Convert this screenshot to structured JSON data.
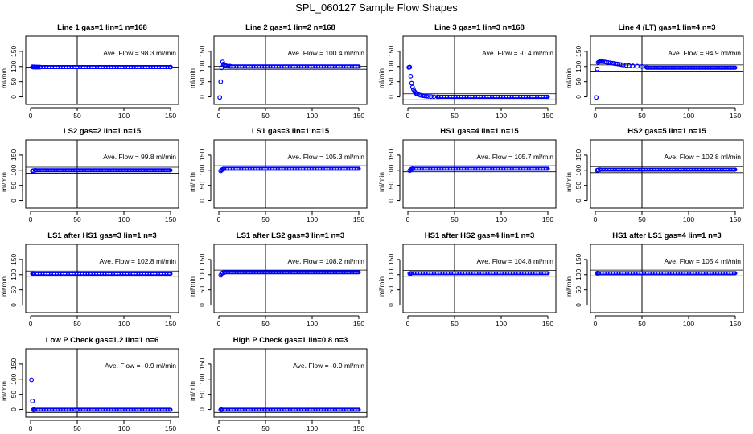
{
  "figure": {
    "title": "SPL_060127  Sample Flow Shapes",
    "ylabel": "ml/min",
    "xticks": [
      0,
      50,
      100,
      150
    ],
    "yticks": [
      0,
      50,
      100,
      150
    ],
    "xlim": [
      0,
      150
    ],
    "ylim": [
      -25,
      200
    ],
    "marker_color": "#0000ff",
    "axis_color": "#000000"
  },
  "chart_data": [
    {
      "type": "scatter",
      "title": "Line 1 gas=1 lin=1 n=168",
      "annotation": "Ave. Flow = 98.3  ml/min",
      "xlim": [
        0,
        150
      ],
      "ylim": [
        -25,
        200
      ],
      "xticks": [
        0,
        50,
        100,
        150
      ],
      "yticks": [
        0,
        50,
        100,
        150
      ],
      "ylabel": "ml/min",
      "vline": 50,
      "hlines": [
        98.3
      ],
      "points": [
        [
          2,
          99
        ],
        [
          3,
          98
        ],
        [
          4,
          99
        ],
        [
          5,
          98
        ],
        [
          6,
          98
        ],
        [
          7,
          98
        ],
        [
          8,
          98
        ],
        [
          10,
          98
        ],
        [
          150,
          98
        ]
      ],
      "line_from": 10,
      "line_y": 98
    },
    {
      "type": "scatter",
      "title": "Line 2 gas=1 lin=2 n=168",
      "annotation": "Ave. Flow = 100.4  ml/min",
      "xlim": [
        0,
        150
      ],
      "ylim": [
        -25,
        200
      ],
      "xticks": [
        0,
        50,
        100,
        150
      ],
      "yticks": [
        0,
        50,
        100,
        150
      ],
      "ylabel": "ml/min",
      "vline": 50,
      "hlines": [
        100.4,
        91
      ],
      "points": [
        [
          1,
          -2
        ],
        [
          2,
          50
        ],
        [
          3,
          96
        ],
        [
          4,
          115
        ],
        [
          5,
          108
        ],
        [
          6,
          104
        ],
        [
          7,
          103
        ],
        [
          8,
          102
        ],
        [
          10,
          101
        ],
        [
          12,
          101
        ]
      ],
      "line_from": 12,
      "line_y": 100
    },
    {
      "type": "scatter",
      "title": "Line 3 gas=1 lin=3 n=168",
      "annotation": "Ave. Flow = -0.4  ml/min",
      "xlim": [
        0,
        150
      ],
      "ylim": [
        -25,
        200
      ],
      "xticks": [
        0,
        50,
        100,
        150
      ],
      "yticks": [
        0,
        50,
        100,
        150
      ],
      "ylabel": "ml/min",
      "vline": 50,
      "hlines": [
        -10,
        10
      ],
      "points": [
        [
          1,
          97
        ],
        [
          2,
          98
        ],
        [
          3,
          68
        ],
        [
          4,
          45
        ],
        [
          5,
          32
        ],
        [
          6,
          24
        ],
        [
          7,
          18
        ],
        [
          8,
          14
        ],
        [
          9,
          11
        ],
        [
          10,
          9
        ],
        [
          12,
          7
        ],
        [
          14,
          5
        ],
        [
          16,
          4
        ],
        [
          18,
          3
        ],
        [
          20,
          2
        ],
        [
          22,
          1.5
        ],
        [
          25,
          1
        ],
        [
          28,
          0.5
        ],
        [
          32,
          0.2
        ]
      ],
      "line_from": 32,
      "line_y": 0
    },
    {
      "type": "scatter",
      "title": "Line 4 (LT) gas=1 lin=4 n=3",
      "annotation": "Ave. Flow = 94.9  ml/min",
      "xlim": [
        0,
        150
      ],
      "ylim": [
        -25,
        200
      ],
      "xticks": [
        0,
        50,
        100,
        150
      ],
      "yticks": [
        0,
        50,
        100,
        150
      ],
      "ylabel": "ml/min",
      "vline": 50,
      "hlines": [
        105,
        85
      ],
      "points": [
        [
          1,
          -2
        ],
        [
          2,
          92
        ],
        [
          3,
          113
        ],
        [
          4,
          115
        ],
        [
          5,
          116
        ],
        [
          6,
          116
        ],
        [
          7,
          116
        ],
        [
          8,
          116
        ],
        [
          10,
          115
        ],
        [
          12,
          114
        ],
        [
          14,
          113
        ],
        [
          16,
          112
        ],
        [
          18,
          111
        ],
        [
          20,
          110
        ],
        [
          22,
          109
        ],
        [
          24,
          108
        ],
        [
          26,
          107
        ],
        [
          28,
          106
        ],
        [
          30,
          105
        ],
        [
          33,
          104
        ],
        [
          36,
          103
        ],
        [
          40,
          102
        ],
        [
          45,
          101
        ],
        [
          50,
          100
        ],
        [
          55,
          99
        ]
      ],
      "line_from": 55,
      "line_y": 96
    },
    {
      "type": "scatter",
      "title": "LS2 gas=2 lin=1 n=15",
      "annotation": "Ave. Flow = 99.8  ml/min",
      "xlim": [
        0,
        150
      ],
      "ylim": [
        -25,
        200
      ],
      "xticks": [
        0,
        50,
        100,
        150
      ],
      "yticks": [
        0,
        50,
        100,
        150
      ],
      "ylabel": "ml/min",
      "vline": 50,
      "hlines": [
        110,
        90
      ],
      "points": [
        [
          2,
          98
        ],
        [
          3,
          99
        ],
        [
          5,
          100
        ]
      ],
      "line_from": 5,
      "line_y": 100
    },
    {
      "type": "scatter",
      "title": "LS1 gas=3 lin=1 n=15",
      "annotation": "Ave. Flow = 105.3  ml/min",
      "xlim": [
        0,
        150
      ],
      "ylim": [
        -25,
        200
      ],
      "xticks": [
        0,
        50,
        100,
        150
      ],
      "yticks": [
        0,
        50,
        100,
        150
      ],
      "ylabel": "ml/min",
      "vline": 50,
      "hlines": [
        115
      ],
      "points": [
        [
          2,
          98
        ],
        [
          3,
          101
        ],
        [
          4,
          103
        ],
        [
          5,
          104
        ]
      ],
      "line_from": 5,
      "line_y": 105
    },
    {
      "type": "scatter",
      "title": "HS1 gas=4 lin=1 n=15",
      "annotation": "Ave. Flow = 105.7  ml/min",
      "xlim": [
        0,
        150
      ],
      "ylim": [
        -25,
        200
      ],
      "xticks": [
        0,
        50,
        100,
        150
      ],
      "yticks": [
        0,
        50,
        100,
        150
      ],
      "ylabel": "ml/min",
      "vline": 50,
      "hlines": [
        115,
        95
      ],
      "points": [
        [
          2,
          99
        ],
        [
          3,
          102
        ],
        [
          4,
          104
        ],
        [
          5,
          105
        ]
      ],
      "line_from": 5,
      "line_y": 105
    },
    {
      "type": "scatter",
      "title": "HS2 gas=5 lin=1 n=15",
      "annotation": "Ave. Flow = 102.8  ml/min",
      "xlim": [
        0,
        150
      ],
      "ylim": [
        -25,
        200
      ],
      "xticks": [
        0,
        50,
        100,
        150
      ],
      "yticks": [
        0,
        50,
        100,
        150
      ],
      "ylabel": "ml/min",
      "vline": 50,
      "hlines": [
        112,
        92
      ],
      "points": [
        [
          2,
          100
        ],
        [
          3,
          101
        ],
        [
          5,
          102
        ]
      ],
      "line_from": 5,
      "line_y": 102
    },
    {
      "type": "scatter",
      "title": "LS1 after HS1 gas=3 lin=1 n=3",
      "annotation": "Ave. Flow = 102.8  ml/min",
      "xlim": [
        0,
        150
      ],
      "ylim": [
        -25,
        200
      ],
      "xticks": [
        0,
        50,
        100,
        150
      ],
      "yticks": [
        0,
        50,
        100,
        150
      ],
      "ylabel": "ml/min",
      "vline": 50,
      "hlines": [
        112,
        95
      ],
      "points": [
        [
          2,
          103
        ],
        [
          3,
          103
        ]
      ],
      "line_from": 3,
      "line_y": 103
    },
    {
      "type": "scatter",
      "title": "LS1 after LS2 gas=3 lin=1 n=3",
      "annotation": "Ave. Flow = 108.2  ml/min",
      "xlim": [
        0,
        150
      ],
      "ylim": [
        -25,
        200
      ],
      "xticks": [
        0,
        50,
        100,
        150
      ],
      "yticks": [
        0,
        50,
        100,
        150
      ],
      "ylabel": "ml/min",
      "vline": 50,
      "hlines": [
        115
      ],
      "points": [
        [
          2,
          98
        ],
        [
          3,
          104
        ],
        [
          4,
          106
        ],
        [
          6,
          107
        ]
      ],
      "line_from": 6,
      "line_y": 108
    },
    {
      "type": "scatter",
      "title": "HS1 after HS2 gas=4 lin=1 n=3",
      "annotation": "Ave. Flow = 104.8  ml/min",
      "xlim": [
        0,
        150
      ],
      "ylim": [
        -25,
        200
      ],
      "xticks": [
        0,
        50,
        100,
        150
      ],
      "yticks": [
        0,
        50,
        100,
        150
      ],
      "ylabel": "ml/min",
      "vline": 50,
      "hlines": [
        114,
        95
      ],
      "points": [
        [
          2,
          104
        ],
        [
          3,
          104
        ]
      ],
      "line_from": 3,
      "line_y": 105
    },
    {
      "type": "scatter",
      "title": "HS1 after LS1 gas=4 lin=1 n=3",
      "annotation": "Ave. Flow = 105.4  ml/min",
      "xlim": [
        0,
        150
      ],
      "ylim": [
        -25,
        200
      ],
      "xticks": [
        0,
        50,
        100,
        150
      ],
      "yticks": [
        0,
        50,
        100,
        150
      ],
      "ylabel": "ml/min",
      "vline": 50,
      "hlines": [
        115,
        96
      ],
      "points": [
        [
          2,
          105
        ],
        [
          3,
          105
        ]
      ],
      "line_from": 3,
      "line_y": 105
    },
    {
      "type": "scatter",
      "title": "Low P Check gas=1.2 lin=1 n=6",
      "annotation": "Ave. Flow = -0.9  ml/min",
      "xlim": [
        0,
        150
      ],
      "ylim": [
        -25,
        200
      ],
      "xticks": [
        0,
        50,
        100,
        150
      ],
      "yticks": [
        0,
        50,
        100,
        150
      ],
      "ylabel": "ml/min",
      "vline": 50,
      "hlines": [
        8,
        -10
      ],
      "points": [
        [
          1,
          98
        ],
        [
          2,
          28
        ],
        [
          3,
          -1
        ],
        [
          4,
          -1
        ]
      ],
      "line_from": 4,
      "line_y": -1
    },
    {
      "type": "scatter",
      "title": "High P Check gas=1 lin=0.8 n=3",
      "annotation": "Ave. Flow = -0.9  ml/min",
      "xlim": [
        0,
        150
      ],
      "ylim": [
        -25,
        200
      ],
      "xticks": [
        0,
        50,
        100,
        150
      ],
      "yticks": [
        0,
        50,
        100,
        150
      ],
      "ylabel": "ml/min",
      "vline": 50,
      "hlines": [
        8,
        -10
      ],
      "points": [
        [
          2,
          -1
        ],
        [
          3,
          -1
        ]
      ],
      "line_from": 3,
      "line_y": -1
    }
  ]
}
